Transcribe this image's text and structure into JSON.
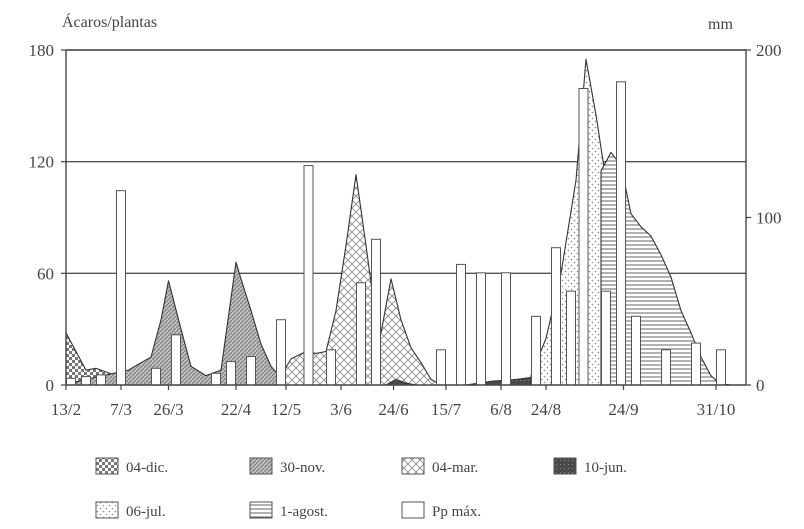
{
  "chart_data": {
    "type": "area",
    "y_left_label": "Ácaros/plantas",
    "y_right_label": "mm",
    "y_left_ticks": [
      "0",
      "60",
      "120",
      "180"
    ],
    "y_right_ticks": [
      "0",
      "100",
      "200"
    ],
    "y_left_lim": [
      0,
      180
    ],
    "y_right_lim": [
      0,
      200
    ],
    "grid": "horizontal",
    "x_ticks": [
      {
        "x": 0,
        "label": "13/2"
      },
      {
        "x": 22,
        "label": "7/3"
      },
      {
        "x": 41,
        "label": "26/3"
      },
      {
        "x": 68,
        "label": "22/4"
      },
      {
        "x": 88,
        "label": "12/5"
      },
      {
        "x": 110,
        "label": "3/6"
      },
      {
        "x": 131,
        "label": "24/6"
      },
      {
        "x": 152,
        "label": "15/7"
      },
      {
        "x": 174,
        "label": "6/8"
      },
      {
        "x": 192,
        "label": "24/8"
      },
      {
        "x": 223,
        "label": "24/9"
      },
      {
        "x": 260,
        "label": "31/10"
      }
    ],
    "x_range": [
      0,
      272
    ],
    "series": [
      {
        "name": "04-dic.",
        "pattern": "checker",
        "points": [
          [
            0,
            28
          ],
          [
            4,
            18
          ],
          [
            8,
            8
          ],
          [
            12,
            9
          ],
          [
            16,
            7
          ],
          [
            20,
            5
          ],
          [
            25,
            4
          ],
          [
            30,
            3
          ],
          [
            40,
            3
          ],
          [
            60,
            4
          ],
          [
            68,
            6
          ],
          [
            73,
            2
          ],
          [
            80,
            0
          ],
          [
            95,
            0
          ],
          [
            100,
            0
          ],
          [
            110,
            0
          ],
          [
            130,
            0
          ],
          [
            150,
            0
          ],
          [
            170,
            0
          ],
          [
            180,
            0
          ],
          [
            200,
            0
          ],
          [
            212,
            0
          ],
          [
            220,
            0
          ],
          [
            240,
            0
          ],
          [
            260,
            0
          ],
          [
            272,
            0
          ]
        ]
      },
      {
        "name": "30-nov.",
        "pattern": "dense",
        "points": [
          [
            0,
            0
          ],
          [
            8,
            3
          ],
          [
            25,
            8
          ],
          [
            30,
            12
          ],
          [
            34,
            15
          ],
          [
            38,
            35
          ],
          [
            41,
            56
          ],
          [
            46,
            30
          ],
          [
            50,
            10
          ],
          [
            56,
            5
          ],
          [
            62,
            8
          ],
          [
            68,
            66
          ],
          [
            70,
            57
          ],
          [
            74,
            40
          ],
          [
            78,
            22
          ],
          [
            82,
            10
          ],
          [
            86,
            4
          ],
          [
            92,
            3
          ],
          [
            98,
            0
          ],
          [
            110,
            0
          ],
          [
            140,
            0
          ],
          [
            170,
            0
          ],
          [
            200,
            0
          ],
          [
            220,
            0
          ],
          [
            272,
            0
          ]
        ]
      },
      {
        "name": "04-mar.",
        "pattern": "diag",
        "points": [
          [
            86,
            5
          ],
          [
            90,
            14
          ],
          [
            96,
            18
          ],
          [
            100,
            17
          ],
          [
            104,
            18
          ],
          [
            108,
            40
          ],
          [
            112,
            75
          ],
          [
            116,
            113
          ],
          [
            120,
            75
          ],
          [
            124,
            35
          ],
          [
            126,
            28
          ],
          [
            130,
            57
          ],
          [
            134,
            35
          ],
          [
            138,
            20
          ],
          [
            142,
            12
          ],
          [
            146,
            3
          ],
          [
            150,
            0
          ]
        ]
      },
      {
        "name": "10-jun.",
        "pattern": "dark",
        "points": [
          [
            128,
            0
          ],
          [
            132,
            3
          ],
          [
            136,
            1
          ],
          [
            140,
            0
          ],
          [
            160,
            0
          ],
          [
            170,
            2
          ],
          [
            180,
            3
          ],
          [
            186,
            4
          ],
          [
            192,
            10
          ],
          [
            198,
            18
          ],
          [
            204,
            24
          ],
          [
            210,
            25
          ],
          [
            214,
            23
          ],
          [
            218,
            14
          ],
          [
            222,
            8
          ],
          [
            228,
            5
          ],
          [
            234,
            3
          ],
          [
            240,
            2
          ],
          [
            248,
            1
          ],
          [
            256,
            0
          ]
        ]
      },
      {
        "name": "06-jul.",
        "pattern": "dots",
        "points": [
          [
            186,
            5
          ],
          [
            192,
            25
          ],
          [
            198,
            60
          ],
          [
            204,
            110
          ],
          [
            208,
            175
          ],
          [
            212,
            145
          ],
          [
            216,
            110
          ],
          [
            220,
            120
          ],
          [
            224,
            80
          ],
          [
            228,
            50
          ],
          [
            232,
            30
          ],
          [
            236,
            20
          ],
          [
            242,
            10
          ],
          [
            248,
            4
          ],
          [
            254,
            2
          ],
          [
            260,
            1
          ],
          [
            266,
            0
          ]
        ]
      },
      {
        "name": "1-agost.",
        "pattern": "hlines",
        "points": [
          [
            214,
            115
          ],
          [
            218,
            125
          ],
          [
            222,
            118
          ],
          [
            226,
            92
          ],
          [
            230,
            85
          ],
          [
            234,
            80
          ],
          [
            238,
            70
          ],
          [
            242,
            58
          ],
          [
            246,
            40
          ],
          [
            250,
            28
          ],
          [
            254,
            15
          ],
          [
            258,
            5
          ],
          [
            262,
            0
          ]
        ]
      }
    ],
    "bars": {
      "name": "Pp máx.",
      "values": [
        [
          2,
          4
        ],
        [
          8,
          5
        ],
        [
          14,
          6
        ],
        [
          22,
          116
        ],
        [
          36,
          10
        ],
        [
          44,
          30
        ],
        [
          60,
          7
        ],
        [
          66,
          14
        ],
        [
          74,
          17
        ],
        [
          86,
          39
        ],
        [
          97,
          131
        ],
        [
          106,
          21
        ],
        [
          118,
          61
        ],
        [
          124,
          87
        ],
        [
          150,
          21
        ],
        [
          158,
          72
        ],
        [
          166,
          67
        ],
        [
          176,
          67
        ],
        [
          188,
          41
        ],
        [
          196,
          82
        ],
        [
          202,
          56
        ],
        [
          207,
          177
        ],
        [
          216,
          56
        ],
        [
          222,
          181
        ],
        [
          228,
          41
        ],
        [
          240,
          21
        ],
        [
          252,
          25
        ],
        [
          262,
          21
        ]
      ]
    },
    "legend": [
      {
        "label": "04-dic.",
        "pattern": "checker"
      },
      {
        "label": "30-nov.",
        "pattern": "dense"
      },
      {
        "label": "04-mar.",
        "pattern": "diag"
      },
      {
        "label": "10-jun.",
        "pattern": "dark"
      },
      {
        "label": "06-jul.",
        "pattern": "dots"
      },
      {
        "label": "1-agost.",
        "pattern": "hlines"
      },
      {
        "label": "Pp máx.",
        "pattern": "empty"
      }
    ]
  }
}
